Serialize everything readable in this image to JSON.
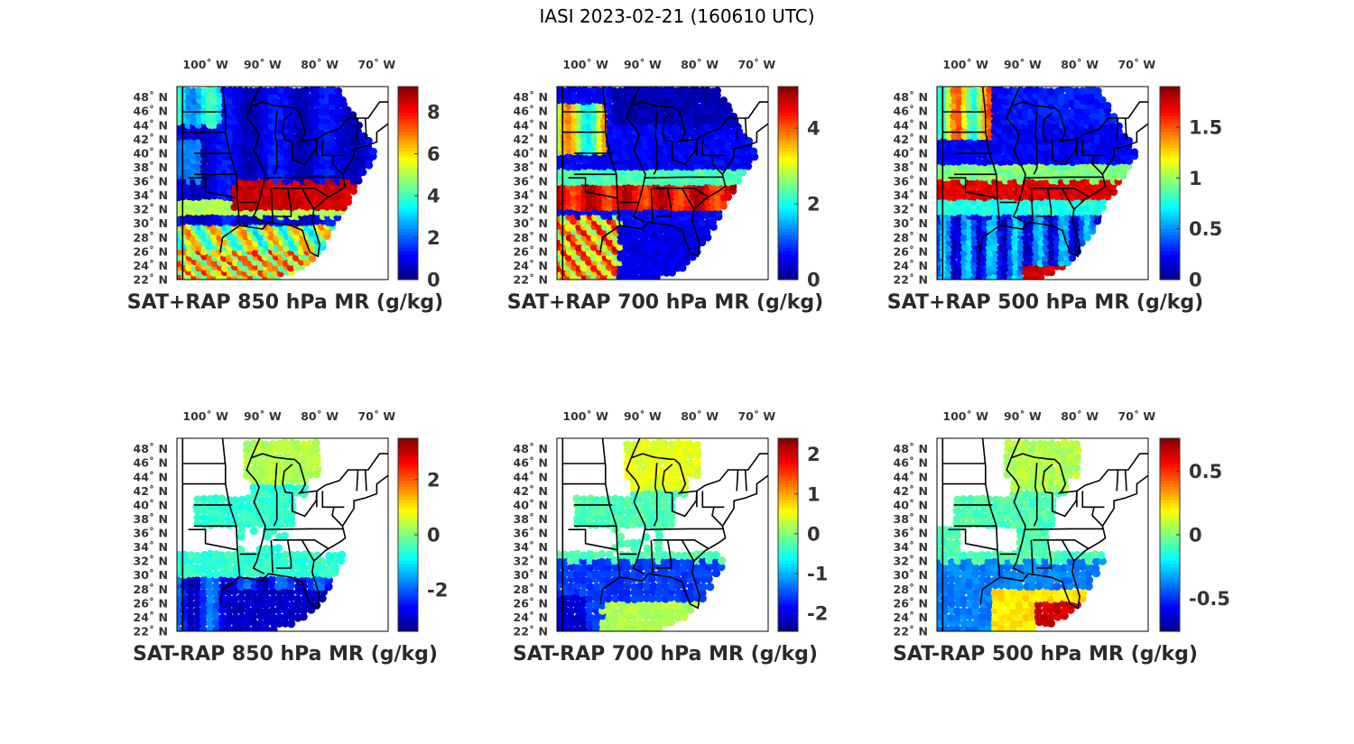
{
  "figure": {
    "title": "IASI 2023-02-21 (160610 UTC)",
    "lon_ticks": [
      "100˚ W",
      "90˚ W",
      "80˚ W",
      "70˚ W"
    ],
    "lat_ticks": [
      "48˚ N",
      "46˚ N",
      "44˚ N",
      "42˚ N",
      "40˚ N",
      "38˚ N",
      "36˚ N",
      "34˚ N",
      "32˚ N",
      "30˚ N",
      "28˚ N",
      "26˚ N",
      "24˚ N",
      "22˚ N"
    ],
    "colormap": "jet"
  },
  "chart_data": [
    {
      "type": "heatmap",
      "title": "SAT+RAP 850 hPa MR (g/kg)",
      "clim": [
        0,
        9.2
      ],
      "colorbar_ticks": [
        "0",
        "2",
        "4",
        "6",
        "8"
      ],
      "colorbar_values": [
        0,
        2,
        4,
        6,
        8
      ],
      "lon_range": [
        -105,
        -68
      ],
      "lat_range": [
        22,
        49.5
      ]
    },
    {
      "type": "heatmap",
      "title": "SAT+RAP 700 hPa MR (g/kg)",
      "clim": [
        0,
        5.1
      ],
      "colorbar_ticks": [
        "0",
        "2",
        "4"
      ],
      "colorbar_values": [
        0,
        2,
        4
      ],
      "lon_range": [
        -105,
        -68
      ],
      "lat_range": [
        22,
        49.5
      ]
    },
    {
      "type": "heatmap",
      "title": "SAT+RAP 500 hPa MR (g/kg)",
      "clim": [
        0,
        1.9
      ],
      "colorbar_ticks": [
        "0",
        "0.5",
        "1",
        "1.5"
      ],
      "colorbar_values": [
        0,
        0.5,
        1,
        1.5
      ],
      "lon_range": [
        -105,
        -68
      ],
      "lat_range": [
        22,
        49.5
      ]
    },
    {
      "type": "heatmap",
      "title": "SAT-RAP 850 hPa MR (g/kg)",
      "clim": [
        -3.5,
        3.5
      ],
      "colorbar_ticks": [
        "-2",
        "0",
        "2"
      ],
      "colorbar_values": [
        -2,
        0,
        2
      ],
      "lon_range": [
        -105,
        -68
      ],
      "lat_range": [
        22,
        49.5
      ]
    },
    {
      "type": "heatmap",
      "title": "SAT-RAP 700 hPa MR (g/kg)",
      "clim": [
        -2.45,
        2.4
      ],
      "colorbar_ticks": [
        "-2",
        "-1",
        "0",
        "1",
        "2"
      ],
      "colorbar_values": [
        -2,
        -1,
        0,
        1,
        2
      ],
      "lon_range": [
        -105,
        -68
      ],
      "lat_range": [
        22,
        49.5
      ]
    },
    {
      "type": "heatmap",
      "title": "SAT-RAP 500 hPa MR (g/kg)",
      "clim": [
        -0.76,
        0.76
      ],
      "colorbar_ticks": [
        "-0.5",
        "0",
        "0.5"
      ],
      "colorbar_values": [
        -0.5,
        0,
        0.5
      ],
      "lon_range": [
        -105,
        -68
      ],
      "lat_range": [
        22,
        49.5
      ]
    }
  ]
}
